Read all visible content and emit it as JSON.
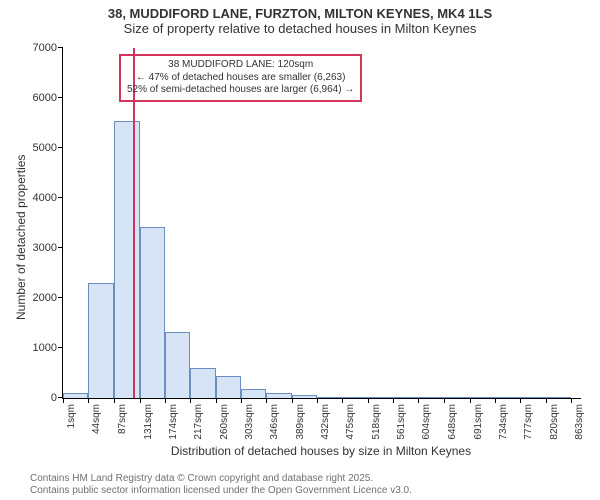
{
  "title_main": "38, MUDDIFORD LANE, FURZTON, MILTON KEYNES, MK4 1LS",
  "title_sub": "Size of property relative to detached houses in Milton Keynes",
  "y_axis_label": "Number of detached properties",
  "x_axis_label": "Distribution of detached houses by size in Milton Keynes",
  "chart": {
    "type": "bar_histogram",
    "xlim_sqm": [
      1,
      880
    ],
    "ylim": [
      0,
      7000
    ],
    "y_ticks": [
      0,
      1000,
      2000,
      3000,
      4000,
      5000,
      6000,
      7000
    ],
    "x_tick_labels": [
      "1sqm",
      "44sqm",
      "87sqm",
      "131sqm",
      "174sqm",
      "217sqm",
      "260sqm",
      "303sqm",
      "346sqm",
      "389sqm",
      "432sqm",
      "475sqm",
      "518sqm",
      "561sqm",
      "604sqm",
      "648sqm",
      "691sqm",
      "734sqm",
      "777sqm",
      "820sqm",
      "863sqm"
    ],
    "x_tick_positions_sqm": [
      1,
      44,
      87,
      131,
      174,
      217,
      260,
      303,
      346,
      389,
      432,
      475,
      518,
      561,
      604,
      648,
      691,
      734,
      777,
      820,
      863
    ],
    "bar_color": "#d6e4f5",
    "bar_border": "#6b8fbf",
    "bars": [
      {
        "x0": 1,
        "x1": 44,
        "y": 100
      },
      {
        "x0": 44,
        "x1": 87,
        "y": 2300
      },
      {
        "x0": 87,
        "x1": 131,
        "y": 5550
      },
      {
        "x0": 131,
        "x1": 174,
        "y": 3420
      },
      {
        "x0": 174,
        "x1": 217,
        "y": 1320
      },
      {
        "x0": 217,
        "x1": 260,
        "y": 600
      },
      {
        "x0": 260,
        "x1": 303,
        "y": 450
      },
      {
        "x0": 303,
        "x1": 346,
        "y": 180
      },
      {
        "x0": 346,
        "x1": 389,
        "y": 110
      },
      {
        "x0": 389,
        "x1": 432,
        "y": 60
      },
      {
        "x0": 432,
        "x1": 475,
        "y": 25
      },
      {
        "x0": 475,
        "x1": 518,
        "y": 12
      },
      {
        "x0": 518,
        "x1": 561,
        "y": 8
      },
      {
        "x0": 561,
        "x1": 604,
        "y": 6
      },
      {
        "x0": 604,
        "x1": 648,
        "y": 5
      },
      {
        "x0": 648,
        "x1": 691,
        "y": 3
      },
      {
        "x0": 691,
        "x1": 734,
        "y": 3
      },
      {
        "x0": 734,
        "x1": 777,
        "y": 2
      },
      {
        "x0": 777,
        "x1": 820,
        "y": 2
      },
      {
        "x0": 820,
        "x1": 863,
        "y": 2
      }
    ],
    "marker": {
      "x_sqm": 120,
      "color": "#d4335b"
    },
    "annotation": {
      "border_color": "#d4335b",
      "line1": "38 MUDDIFORD LANE: 120sqm",
      "line2": "← 47% of detached houses are smaller (6,263)",
      "line3": "52% of semi-detached houses are larger (6,964) →"
    },
    "title_fontsize": 13,
    "label_fontsize": 12,
    "tick_fontsize": 11,
    "background_color": "#ffffff",
    "axis_color": "#000000"
  },
  "footnote_line1": "Contains HM Land Registry data © Crown copyright and database right 2025.",
  "footnote_line2": "Contains public sector information licensed under the Open Government Licence v3.0."
}
